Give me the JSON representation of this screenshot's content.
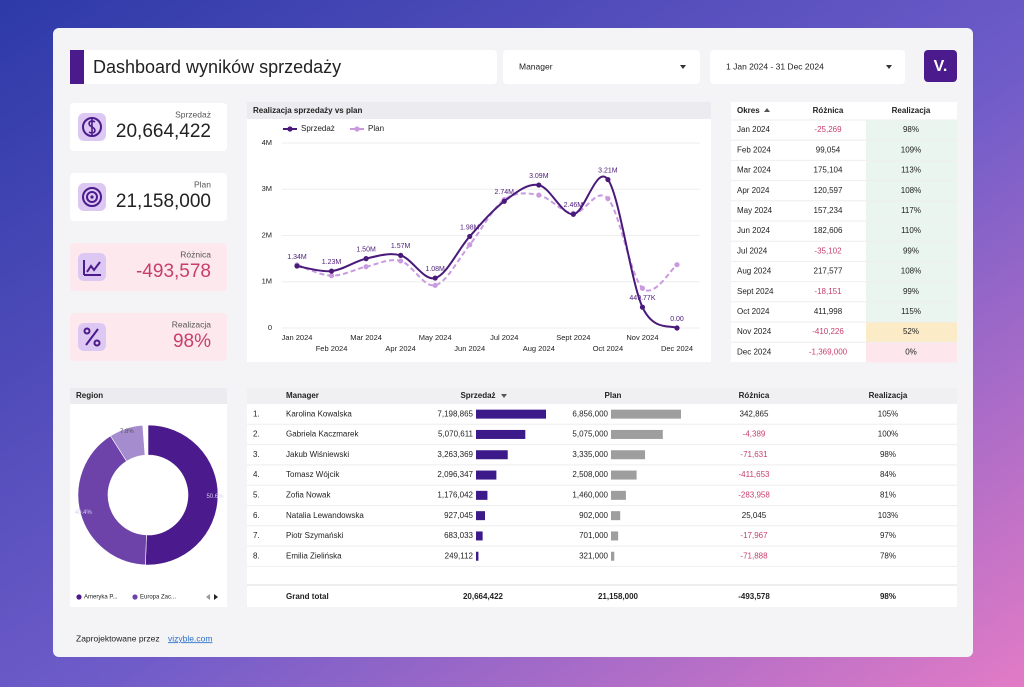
{
  "header": {
    "title": "Dashboard wyników sprzedaży",
    "manager_filter": "Manager",
    "date_filter": "1 Jan 2024 - 31 Dec 2024",
    "logo": "V."
  },
  "kpis": [
    {
      "label": "Sprzedaż",
      "value": "20,664,422"
    },
    {
      "label": "Plan",
      "value": "21,158,000"
    },
    {
      "label": "Różnica",
      "value": "-493,578"
    },
    {
      "label": "Realizacja",
      "value": "98%"
    }
  ],
  "chart_data": [
    {
      "type": "line",
      "title": "Realizacja sprzedaży vs plan",
      "categories": [
        "Jan 2024",
        "Feb 2024",
        "Mar 2024",
        "Apr 2024",
        "May 2024",
        "Jun 2024",
        "Jul 2024",
        "Aug 2024",
        "Sept 2024",
        "Oct 2024",
        "Nov 2024",
        "Dec 2024"
      ],
      "series": [
        {
          "name": "Sprzedaż",
          "color": "#4a1a7a",
          "values": [
            1340000,
            1230000,
            1500000,
            1570000,
            1080000,
            1980000,
            2740000,
            3090000,
            2460000,
            3210000,
            449770,
            0
          ],
          "value_labels": [
            "1.34M",
            "1.23M",
            "1.50M",
            "1.57M",
            "1.08M",
            "1.98M",
            "2.74M",
            "3.09M",
            "2.46M",
            "3.21M",
            "449.77K",
            "0.00"
          ]
        },
        {
          "name": "Plan",
          "color": "#c99ae0",
          "values": [
            1365000,
            1131000,
            1325000,
            1450000,
            923000,
            1800000,
            2775000,
            2873000,
            2478000,
            2798000,
            860000,
            1369000
          ]
        }
      ],
      "ylim": [
        0,
        4000000
      ],
      "yticks": [
        0,
        {
          "value": 1000000,
          "label": "1M"
        },
        {
          "value": 2000000,
          "label": "2M"
        },
        {
          "value": 3000000,
          "label": "3M"
        },
        {
          "value": 4000000,
          "label": "4M"
        }
      ],
      "grid": true
    },
    {
      "type": "pie",
      "title": "Region",
      "categories": [
        "Ameryka P...",
        "Europa Zac...",
        null
      ],
      "values": [
        50.6,
        40.4,
        7.8
      ],
      "value_labels": [
        "50.6%",
        "40.4%",
        "7.8%"
      ],
      "colors": [
        "#4b1a8c",
        "#6d43a9",
        "#a58ccf"
      ]
    }
  ],
  "monthly_table": {
    "headers": [
      "Okres",
      "Różnica",
      "Realizacja"
    ],
    "rows": [
      [
        "Jan 2024",
        "-25,269",
        "98%"
      ],
      [
        "Feb 2024",
        "99,054",
        "109%"
      ],
      [
        "Mar 2024",
        "175,104",
        "113%"
      ],
      [
        "Apr 2024",
        "120,597",
        "108%"
      ],
      [
        "May 2024",
        "157,234",
        "117%"
      ],
      [
        "Jun 2024",
        "182,606",
        "110%"
      ],
      [
        "Jul 2024",
        "-35,102",
        "99%"
      ],
      [
        "Aug 2024",
        "217,577",
        "108%"
      ],
      [
        "Sept 2024",
        "-18,151",
        "99%"
      ],
      [
        "Oct 2024",
        "411,998",
        "115%"
      ],
      [
        "Nov 2024",
        "-410,226",
        "52%"
      ],
      [
        "Dec 2024",
        "-1,369,000",
        "0%"
      ]
    ]
  },
  "manager_table": {
    "headers": [
      "Manager",
      "Sprzedaż",
      "Plan",
      "Różnica",
      "Realizacja"
    ],
    "rows": [
      [
        "1.",
        "Karolina Kowalska",
        "7,198,865",
        "6,856,000",
        "342,865",
        "105%"
      ],
      [
        "2.",
        "Gabriela Kaczmarek",
        "5,070,611",
        "5,075,000",
        "-4,389",
        "100%"
      ],
      [
        "3.",
        "Jakub Wiśniewski",
        "3,263,369",
        "3,335,000",
        "-71,631",
        "98%"
      ],
      [
        "4.",
        "Tomasz Wójcik",
        "2,096,347",
        "2,508,000",
        "-411,653",
        "84%"
      ],
      [
        "5.",
        "Zofia Nowak",
        "1,176,042",
        "1,460,000",
        "-283,958",
        "81%"
      ],
      [
        "6.",
        "Natalia Lewandowska",
        "927,045",
        "902,000",
        "25,045",
        "103%"
      ],
      [
        "7.",
        "Piotr Szymański",
        "683,033",
        "701,000",
        "-17,967",
        "97%"
      ],
      [
        "8.",
        "Emilia Zielińska",
        "249,112",
        "321,000",
        "-71,888",
        "78%"
      ]
    ],
    "total": [
      "Grand total",
      "20,664,422",
      "21,158,000",
      "-493,578",
      "98%"
    ]
  },
  "footer": {
    "text": "Zaprojektowane przez",
    "link": "vizyble.com"
  }
}
